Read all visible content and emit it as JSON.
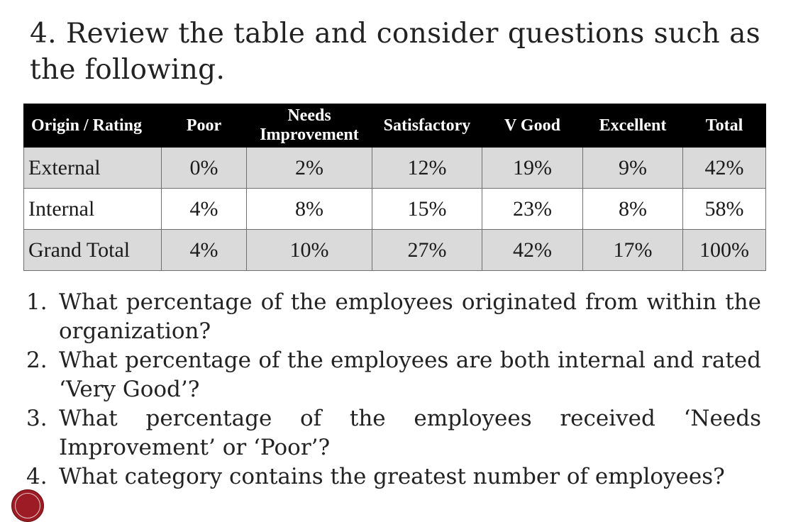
{
  "heading": "4. Review the table and consider questions such as the following.",
  "table": {
    "columns": [
      "Origin / Rating",
      "Poor",
      "Needs Improvement",
      "Satisfactory",
      "V Good",
      "Excellent",
      "Total"
    ],
    "rows": [
      [
        "External",
        "0%",
        "2%",
        "12%",
        "19%",
        "9%",
        "42%"
      ],
      [
        "Internal",
        "4%",
        "8%",
        "15%",
        "23%",
        "8%",
        "58%"
      ],
      [
        "Grand Total",
        "4%",
        "10%",
        "27%",
        "42%",
        "17%",
        "100%"
      ]
    ]
  },
  "questions": [
    {
      "num": "1.",
      "text": "What percentage of the employees originated from within the organization?"
    },
    {
      "num": "2.",
      "text": "What percentage of the employees are both internal and rated ‘Very Good’?"
    },
    {
      "num": "3.",
      "text": "What percentage of the employees received ‘Needs Improvement’ or ‘Poor’?"
    },
    {
      "num": "4.",
      "text": "What category contains the greatest number of employees?"
    }
  ],
  "logo": {
    "name": "university-seal",
    "color": "#9c1b24"
  }
}
